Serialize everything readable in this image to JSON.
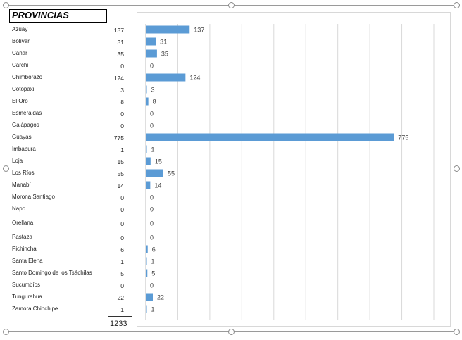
{
  "sheet": {
    "header_label": "PROVINCIAS",
    "total_label": "1233"
  },
  "colors": {
    "bar": "#5b9bd5",
    "gridline": "#d9d9d9"
  },
  "chart_data": {
    "type": "bar",
    "orientation": "horizontal",
    "categories": [
      "Azuay",
      "Bolívar",
      "Cañar",
      "Carchi",
      "Chimborazo",
      "Cotopaxi",
      "El Oro",
      "Esmeraldas",
      "Galápagos",
      "Guayas",
      "Imbabura",
      "Loja",
      "Los Ríos",
      "Manabí",
      "Morona Santiago",
      "Napo",
      "Orellana",
      "Pastaza",
      "Pichincha",
      "Santa Elena",
      "Santo Domingo de los Tsáchilas",
      "Sucumbíos",
      "Tungurahua",
      "Zamora Chinchipe"
    ],
    "values": [
      137,
      31,
      35,
      0,
      124,
      3,
      8,
      0,
      0,
      775,
      1,
      15,
      55,
      14,
      0,
      0,
      0,
      0,
      6,
      1,
      5,
      0,
      22,
      1
    ],
    "xlim": [
      0,
      900
    ],
    "grid": true,
    "data_labels": true
  }
}
